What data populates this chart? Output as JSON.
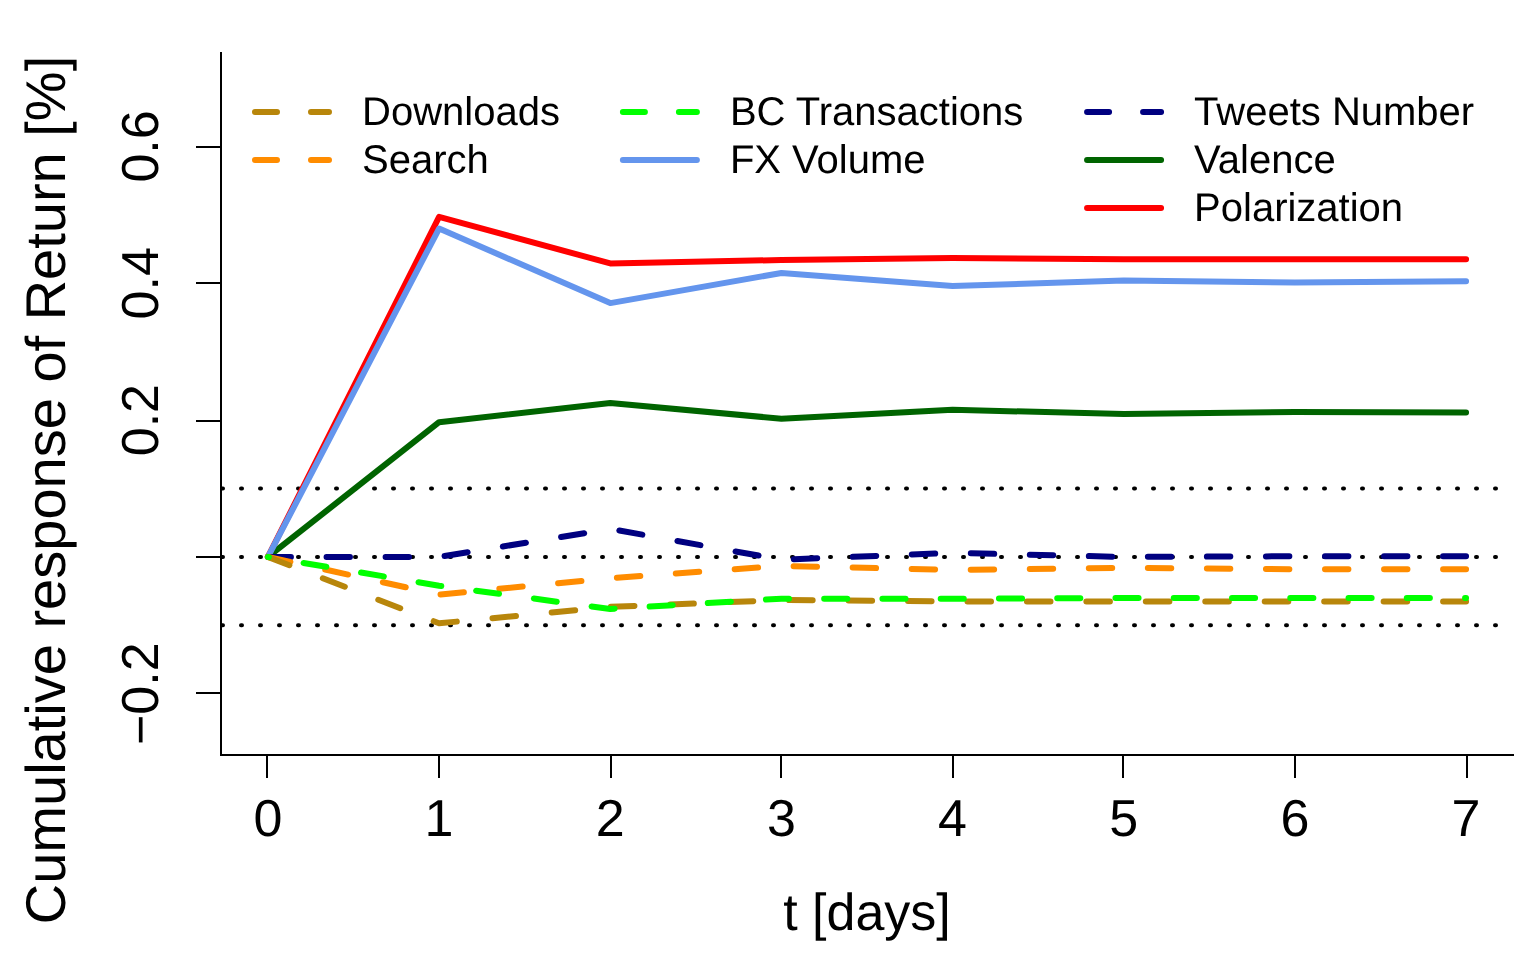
{
  "chart_data": {
    "type": "line",
    "xlabel": "t [days]",
    "ylabel": "Cumulative response of Return [%]",
    "x": [
      0,
      1,
      2,
      3,
      4,
      5,
      6,
      7
    ],
    "series": [
      {
        "name": "Downloads",
        "color": "#b8860b",
        "line_style": "dashed",
        "values": [
          0,
          -0.097,
          -0.073,
          -0.063,
          -0.065,
          -0.065,
          -0.065,
          -0.065
        ]
      },
      {
        "name": "Search",
        "color": "#ff8c00",
        "line_style": "dashed",
        "values": [
          0,
          -0.055,
          -0.031,
          -0.013,
          -0.019,
          -0.016,
          -0.018,
          -0.018
        ]
      },
      {
        "name": "BC Transactions",
        "color": "#00ff00",
        "line_style": "dashed",
        "values": [
          0,
          -0.042,
          -0.076,
          -0.061,
          -0.061,
          -0.06,
          -0.06,
          -0.06
        ]
      },
      {
        "name": "FX Volume",
        "color": "#6495ed",
        "line_style": "solid",
        "values": [
          0,
          0.48,
          0.371,
          0.415,
          0.396,
          0.404,
          0.401,
          0.403
        ]
      },
      {
        "name": "Tweets Number",
        "color": "#000080",
        "line_style": "dashed",
        "values": [
          0,
          0,
          0.041,
          -0.004,
          0.006,
          0,
          0.001,
          0.001
        ]
      },
      {
        "name": "Valence",
        "color": "#006400",
        "line_style": "solid",
        "values": [
          0,
          0.197,
          0.225,
          0.202,
          0.215,
          0.209,
          0.212,
          0.211
        ]
      },
      {
        "name": "Polarization",
        "color": "#ff0000",
        "line_style": "solid",
        "values": [
          0,
          0.497,
          0.429,
          0.434,
          0.437,
          0.435,
          0.435,
          0.435
        ]
      }
    ],
    "xlim": [
      -0.28,
      7.28
    ],
    "xticks": [
      0,
      1,
      2,
      3,
      4,
      5,
      6,
      7
    ],
    "ylim": [
      -0.288,
      0.738
    ],
    "yticks": [
      -0.2,
      {
        "value": 0,
        "label": null
      },
      0.2,
      0.4,
      0.6
    ],
    "ref_lines": [
      {
        "axis": "y",
        "value": 0.1,
        "color": "#000000",
        "line_style": "dotted"
      },
      {
        "axis": "y",
        "value": 0,
        "color": "#000000",
        "line_style": "dotted"
      },
      {
        "axis": "y",
        "value": -0.1,
        "color": "#000000",
        "line_style": "dotted"
      }
    ],
    "legend": "top left",
    "marker": "none"
  }
}
